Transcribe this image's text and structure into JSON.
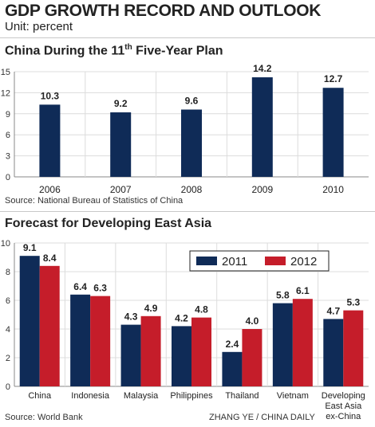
{
  "header": {
    "title": "GDP GROWTH RECORD AND OUTLOOK",
    "unit": "Unit: percent"
  },
  "chart1": {
    "title_prefix": "China During the 11",
    "title_sup": "th",
    "title_suffix": " Five-Year Plan",
    "source": "Source: National Bureau of Statistics of China"
  },
  "chart2": {
    "title": "Forecast for Developing East Asia",
    "source": "Source: World Bank",
    "credit": "ZHANG YE / CHINA DAILY"
  },
  "colors": {
    "navy": "#0f2b57",
    "red": "#c51d2a",
    "gridline": "#dcdcdc",
    "axis": "#888888"
  },
  "chart_data": [
    {
      "type": "bar",
      "title": "China During the 11th Five-Year Plan",
      "categories": [
        "2006",
        "2007",
        "2008",
        "2009",
        "2010"
      ],
      "values": [
        10.3,
        9.2,
        9.6,
        14.2,
        12.7
      ],
      "value_labels": [
        "10.3",
        "9.2",
        "9.6",
        "14.2",
        "12.7"
      ],
      "ylim": [
        0,
        15
      ],
      "yticks": [
        "0",
        "3",
        "6",
        "9",
        "12",
        "15"
      ],
      "grid": true
    },
    {
      "type": "bar",
      "title": "Forecast for Developing East Asia",
      "categories": [
        "China",
        "Indonesia",
        "Malaysia",
        "Philippines",
        "Thailand",
        "Vietnam",
        "Developing East Asia ex-China"
      ],
      "category_lines": [
        [
          "China"
        ],
        [
          "Indonesia"
        ],
        [
          "Malaysia"
        ],
        [
          "Philippines"
        ],
        [
          "Thailand"
        ],
        [
          "Vietnam"
        ],
        [
          "Developing",
          "East Asia",
          "ex-China"
        ]
      ],
      "series": [
        {
          "name": "2011",
          "values": [
            9.1,
            6.4,
            4.3,
            4.2,
            2.4,
            5.8,
            4.7
          ],
          "labels": [
            "9.1",
            "6.4",
            "4.3",
            "4.2",
            "2.4",
            "5.8",
            "4.7"
          ]
        },
        {
          "name": "2012",
          "values": [
            8.4,
            6.3,
            4.9,
            4.8,
            4.0,
            6.1,
            5.3
          ],
          "labels": [
            "8.4",
            "6.3",
            "4.9",
            "4.8",
            "4.0",
            "6.1",
            "5.3"
          ]
        }
      ],
      "ylim": [
        0,
        10
      ],
      "yticks": [
        "0",
        "2",
        "4",
        "6",
        "8",
        "10"
      ],
      "legend": "top-right",
      "grid": true
    }
  ]
}
